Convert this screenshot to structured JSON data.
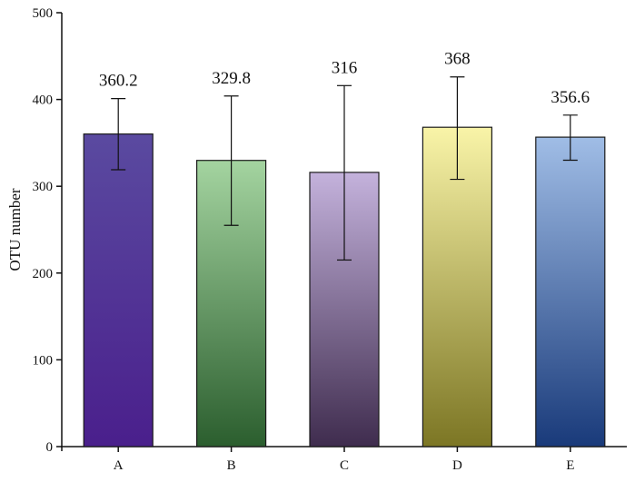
{
  "chart_data": {
    "type": "bar",
    "title": "",
    "xlabel": "",
    "ylabel": "OTU number",
    "ylim": [
      0,
      500
    ],
    "yticks": [
      0,
      100,
      200,
      300,
      400,
      500
    ],
    "grid": false,
    "categories": [
      "A",
      "B",
      "C",
      "D",
      "E"
    ],
    "values": [
      360.2,
      329.8,
      316,
      368,
      356.6
    ],
    "error_low": [
      319,
      255,
      215,
      308,
      330
    ],
    "error_high": [
      401,
      404,
      416,
      426,
      382
    ],
    "data_labels": [
      "360.2",
      "329.8",
      "316",
      "368",
      "356.6"
    ],
    "bar_colors": [
      {
        "top": "#5a4aa0",
        "bottom": "#4a1f8c"
      },
      {
        "top": "#a4d4a0",
        "bottom": "#2b5e2e"
      },
      {
        "top": "#c4b2dc",
        "bottom": "#3f2c4e"
      },
      {
        "top": "#f9f4a8",
        "bottom": "#7c7624"
      },
      {
        "top": "#a0bde6",
        "bottom": "#193a7a"
      }
    ]
  }
}
